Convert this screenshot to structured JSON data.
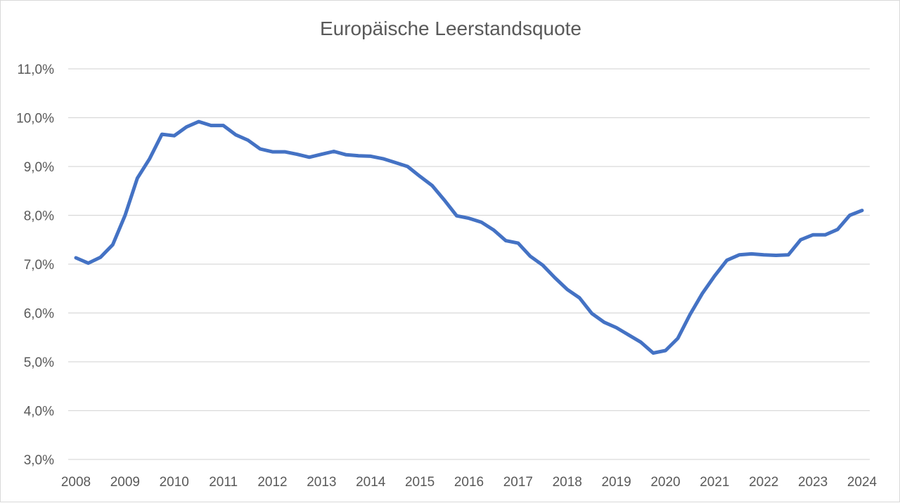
{
  "chart_data": {
    "type": "line",
    "title": "Europäische Leerstandsquote",
    "xlabel": "",
    "ylabel": "",
    "x_ticks": [
      "2008",
      "2009",
      "2010",
      "2011",
      "2012",
      "2013",
      "2014",
      "2015",
      "2016",
      "2017",
      "2018",
      "2019",
      "2020",
      "2021",
      "2022",
      "2023",
      "2024"
    ],
    "y_ticks": [
      "3,0%",
      "4,0%",
      "5,0%",
      "6,0%",
      "7,0%",
      "8,0%",
      "9,0%",
      "10,0%",
      "11,0%"
    ],
    "xlim": [
      2008,
      2024
    ],
    "ylim": [
      3.0,
      11.0
    ],
    "grid": true,
    "legend": "none",
    "series": [
      {
        "color": "#4472c4",
        "x": [
          2008.0,
          2008.25,
          2008.5,
          2008.75,
          2009.0,
          2009.25,
          2009.5,
          2009.75,
          2010.0,
          2010.25,
          2010.5,
          2010.75,
          2011.0,
          2011.25,
          2011.5,
          2011.75,
          2012.0,
          2012.25,
          2012.5,
          2012.75,
          2013.0,
          2013.25,
          2013.5,
          2013.75,
          2014.0,
          2014.25,
          2014.5,
          2014.75,
          2015.0,
          2015.25,
          2015.5,
          2015.75,
          2016.0,
          2016.25,
          2016.5,
          2016.75,
          2017.0,
          2017.25,
          2017.5,
          2017.75,
          2018.0,
          2018.25,
          2018.5,
          2018.75,
          2019.0,
          2019.25,
          2019.5,
          2019.75,
          2020.0,
          2020.25,
          2020.5,
          2020.75,
          2021.0,
          2021.25,
          2021.5,
          2021.75,
          2022.0,
          2022.25,
          2022.5,
          2022.75,
          2023.0,
          2023.25,
          2023.5,
          2023.75,
          2024.0
        ],
        "values": [
          7.13,
          7.02,
          7.14,
          7.4,
          8.0,
          8.76,
          9.16,
          9.66,
          9.63,
          9.81,
          9.92,
          9.84,
          9.84,
          9.65,
          9.54,
          9.36,
          9.3,
          9.3,
          9.25,
          9.19,
          9.25,
          9.31,
          9.24,
          9.22,
          9.21,
          9.16,
          9.08,
          9.0,
          8.8,
          8.61,
          8.31,
          7.99,
          7.94,
          7.86,
          7.7,
          7.48,
          7.43,
          7.16,
          6.98,
          6.72,
          6.48,
          6.31,
          5.99,
          5.81,
          5.7,
          5.55,
          5.4,
          5.18,
          5.23,
          5.48,
          5.97,
          6.4,
          6.76,
          7.08,
          7.19,
          7.21,
          7.19,
          7.18,
          7.19,
          7.5,
          7.6,
          7.6,
          7.71,
          8.0,
          8.1
        ]
      }
    ]
  }
}
